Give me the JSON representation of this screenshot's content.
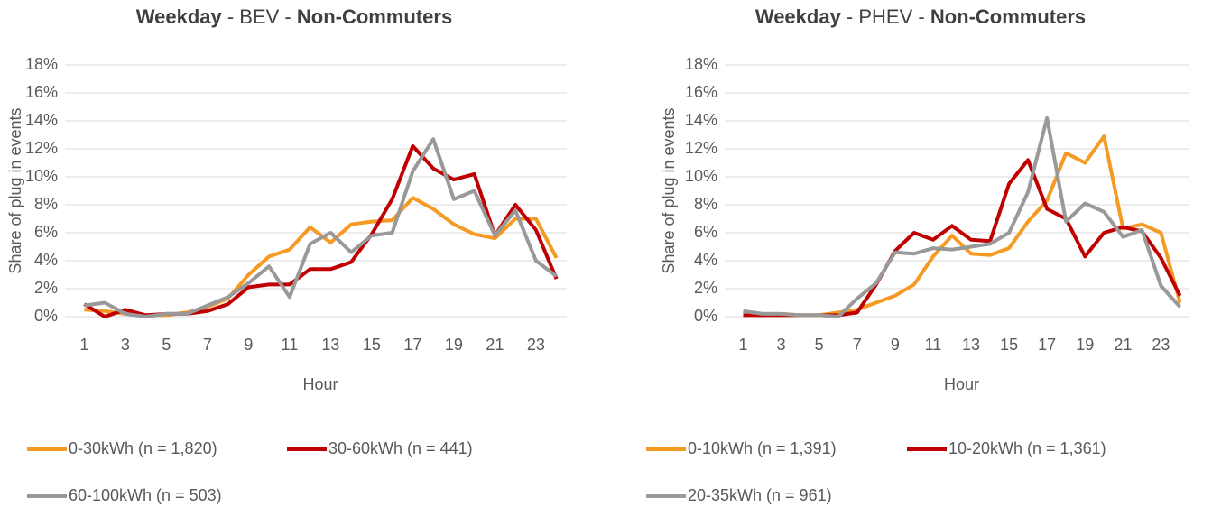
{
  "chart_data": [
    {
      "type": "line",
      "title": [
        {
          "text": "Weekday",
          "bold": true
        },
        {
          "text": " - BEV - ",
          "bold": false
        },
        {
          "text": "Non-Commuters",
          "bold": true
        }
      ],
      "x_label": "Hour",
      "y_label": "Share of plug in events",
      "categories": [
        "1",
        null,
        "3",
        null,
        "5",
        null,
        "7",
        null,
        "9",
        null,
        "11",
        null,
        "13",
        null,
        "15",
        null,
        "17",
        null,
        "19",
        null,
        "21",
        null,
        "23",
        null
      ],
      "ylim": [
        0,
        18
      ],
      "yticks": [
        {
          "value": 0,
          "label": "0%"
        },
        {
          "value": 2,
          "label": "2%"
        },
        {
          "value": 4,
          "label": "4%"
        },
        {
          "value": 6,
          "label": "6%"
        },
        {
          "value": 8,
          "label": "8%"
        },
        {
          "value": 10,
          "label": "10%"
        },
        {
          "value": 12,
          "label": "12%"
        },
        {
          "value": 14,
          "label": "14%"
        },
        {
          "value": 16,
          "label": "16%"
        },
        {
          "value": 18,
          "label": "18%"
        }
      ],
      "grid": true,
      "series": [
        {
          "name": "0-30kWh (n = 1,820)",
          "color": "#f59a23",
          "values": [
            0.5,
            0.4,
            0.2,
            0.1,
            0.1,
            0.3,
            0.7,
            1.3,
            3.0,
            4.3,
            4.8,
            6.4,
            5.3,
            6.6,
            6.8,
            6.9,
            8.5,
            7.7,
            6.6,
            5.9,
            5.6,
            7.0,
            7.0,
            4.2
          ]
        },
        {
          "name": "30-60kWh (n = 441)",
          "color": "#c00000",
          "values": [
            0.9,
            0.0,
            0.5,
            0.1,
            0.2,
            0.2,
            0.4,
            0.9,
            2.1,
            2.3,
            2.3,
            3.4,
            3.4,
            3.9,
            5.9,
            8.4,
            12.2,
            10.6,
            9.8,
            10.2,
            5.8,
            8.0,
            6.2,
            2.7
          ]
        },
        {
          "name": "60-100kWh (n = 503)",
          "color": "#999999",
          "values": [
            0.8,
            1.0,
            0.2,
            0.0,
            0.2,
            0.2,
            0.8,
            1.4,
            2.4,
            3.6,
            1.4,
            5.2,
            6.0,
            4.6,
            5.8,
            6.0,
            10.4,
            12.7,
            8.4,
            9.0,
            5.8,
            7.6,
            4.0,
            2.9
          ]
        }
      ]
    },
    {
      "type": "line",
      "title": [
        {
          "text": "Weekday",
          "bold": true
        },
        {
          "text": " - PHEV - ",
          "bold": false
        },
        {
          "text": "Non-Commuters",
          "bold": true
        }
      ],
      "x_label": "Hour",
      "y_label": "Share of plug in events",
      "categories": [
        "1",
        null,
        "3",
        null,
        "5",
        null,
        "7",
        null,
        "9",
        null,
        "11",
        null,
        "13",
        null,
        "15",
        null,
        "17",
        null,
        "19",
        null,
        "21",
        null,
        "23",
        null
      ],
      "ylim": [
        0,
        18
      ],
      "yticks": [
        {
          "value": 0,
          "label": "0%"
        },
        {
          "value": 2,
          "label": "2%"
        },
        {
          "value": 4,
          "label": "4%"
        },
        {
          "value": 6,
          "label": "6%"
        },
        {
          "value": 8,
          "label": "8%"
        },
        {
          "value": 10,
          "label": "10%"
        },
        {
          "value": 12,
          "label": "12%"
        },
        {
          "value": 14,
          "label": "14%"
        },
        {
          "value": 16,
          "label": "16%"
        },
        {
          "value": 18,
          "label": "18%"
        }
      ],
      "grid": true,
      "series": [
        {
          "name": "0-10kWh (n = 1,391)",
          "color": "#f59a23",
          "values": [
            0.4,
            0.2,
            0.2,
            0.1,
            0.1,
            0.3,
            0.5,
            1.0,
            1.5,
            2.3,
            4.3,
            5.8,
            4.5,
            4.4,
            4.9,
            6.8,
            8.3,
            11.7,
            11.0,
            12.9,
            6.3,
            6.6,
            6.0,
            1.0
          ]
        },
        {
          "name": "10-20kWh (n = 1,361)",
          "color": "#c00000",
          "values": [
            0.1,
            0.1,
            0.1,
            0.1,
            0.1,
            0.1,
            0.3,
            2.3,
            4.7,
            6.0,
            5.5,
            6.5,
            5.5,
            5.4,
            9.5,
            11.2,
            7.7,
            7.0,
            4.3,
            6.0,
            6.4,
            6.1,
            4.2,
            1.5
          ]
        },
        {
          "name": "20-35kWh (n = 961)",
          "color": "#999999",
          "values": [
            0.4,
            0.2,
            0.2,
            0.1,
            0.1,
            0.0,
            1.3,
            2.4,
            4.6,
            4.5,
            4.9,
            4.8,
            5.0,
            5.2,
            6.0,
            8.9,
            14.2,
            6.8,
            8.1,
            7.5,
            5.7,
            6.2,
            2.2,
            0.7
          ]
        }
      ]
    }
  ]
}
